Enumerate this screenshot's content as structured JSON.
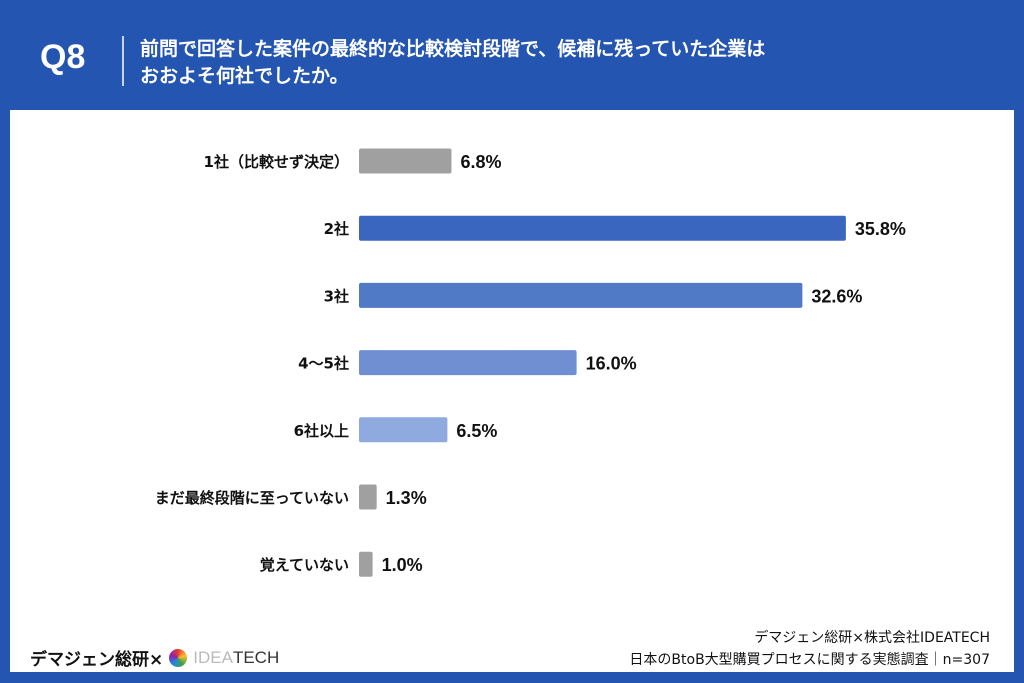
{
  "header": {
    "question_no": "Q8",
    "title_line1": "前問で回答した案件の最終的な比較検討段階で、候補に残っていた企業は",
    "title_line2": "おおよそ何社でしたか。"
  },
  "chart_data": {
    "type": "bar",
    "orientation": "horizontal",
    "categories": [
      "1社（比較せず決定）",
      "2社",
      "3社",
      "4〜5社",
      "6社以上",
      "まだ最終段階に至っていない",
      "覚えていない"
    ],
    "values": [
      6.8,
      35.8,
      32.6,
      16.0,
      6.5,
      1.3,
      1.0
    ],
    "value_labels": [
      "6.8%",
      "35.8%",
      "32.6%",
      "16.0%",
      "6.5%",
      "1.3%",
      "1.0%"
    ],
    "colors": [
      "#a0a0a0",
      "#3a66c0",
      "#5079c6",
      "#6f8fd2",
      "#8eaadf",
      "#a0a0a0",
      "#a0a0a0"
    ],
    "unit": "%",
    "grid": false
  },
  "footer": {
    "left_brand": "デマジェン総研×",
    "logo_text_a": "IDEA",
    "logo_text_b": "TECH",
    "source_line1": "デマジェン総研×株式会社IDEATECH",
    "source_line2": "日本のBtoB大型購買プロセスに関する実態調査｜n=307"
  }
}
